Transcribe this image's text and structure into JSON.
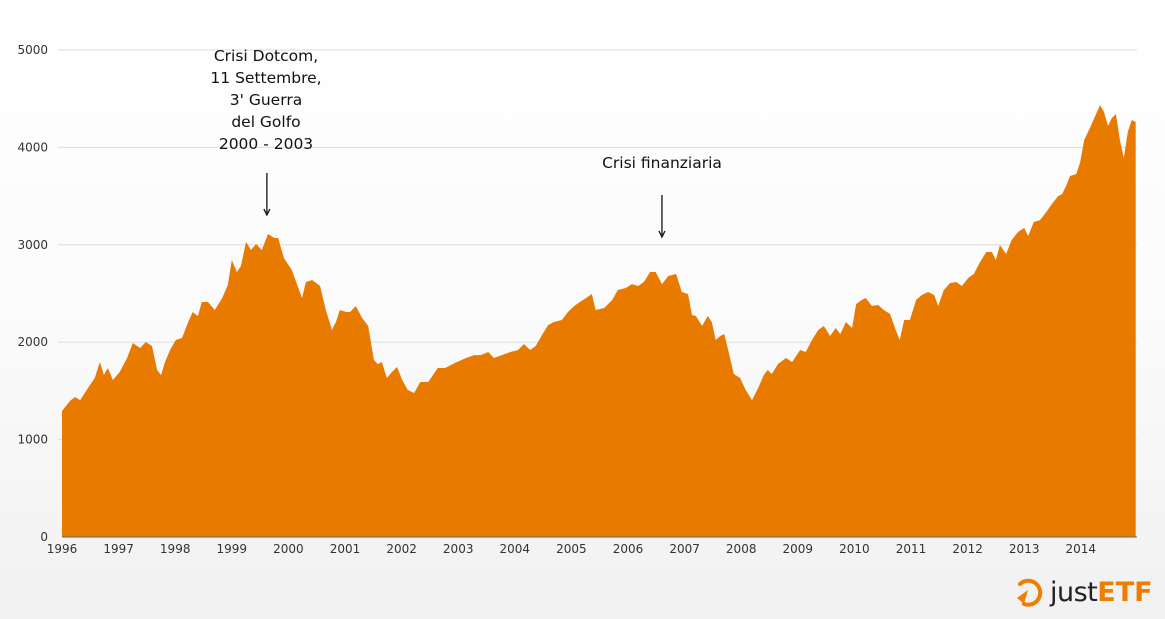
{
  "chart_data": {
    "type": "area",
    "title": "",
    "xlabel": "",
    "ylabel": "",
    "xlim": [
      1996,
      2014.97
    ],
    "ylim": [
      0,
      5000
    ],
    "grid": true,
    "fill_color": "#e87a00",
    "yticks": [
      "0",
      "1000",
      "2000",
      "3000",
      "4000",
      "5000"
    ],
    "xticks": [
      "1996",
      "1997",
      "1998",
      "1999",
      "2000",
      "2001",
      "2002",
      "2003",
      "2004",
      "2005",
      "2006",
      "2007",
      "2008",
      "2009",
      "2010",
      "2011",
      "2012",
      "2013",
      "2014"
    ],
    "series": [
      {
        "points": [
          [
            1996.0,
            1294
          ],
          [
            1996.14,
            1396
          ],
          [
            1996.23,
            1437
          ],
          [
            1996.32,
            1406
          ],
          [
            1996.46,
            1530
          ],
          [
            1996.58,
            1632
          ],
          [
            1996.67,
            1797
          ],
          [
            1996.74,
            1663
          ],
          [
            1996.81,
            1735
          ],
          [
            1996.9,
            1612
          ],
          [
            1997.02,
            1694
          ],
          [
            1997.15,
            1838
          ],
          [
            1997.25,
            1992
          ],
          [
            1997.38,
            1940
          ],
          [
            1997.48,
            2002
          ],
          [
            1997.59,
            1961
          ],
          [
            1997.68,
            1715
          ],
          [
            1997.75,
            1663
          ],
          [
            1997.82,
            1797
          ],
          [
            1997.91,
            1920
          ],
          [
            1998.01,
            2023
          ],
          [
            1998.12,
            2043
          ],
          [
            1998.23,
            2207
          ],
          [
            1998.31,
            2310
          ],
          [
            1998.4,
            2269
          ],
          [
            1998.47,
            2413
          ],
          [
            1998.58,
            2413
          ],
          [
            1998.7,
            2331
          ],
          [
            1998.83,
            2454
          ],
          [
            1998.93,
            2587
          ],
          [
            1999.0,
            2844
          ],
          [
            1999.09,
            2721
          ],
          [
            1999.16,
            2782
          ],
          [
            1999.25,
            3029
          ],
          [
            1999.34,
            2947
          ],
          [
            1999.43,
            3008
          ],
          [
            1999.53,
            2947
          ],
          [
            1999.64,
            3111
          ],
          [
            1999.75,
            3070
          ],
          [
            1999.82,
            3070
          ],
          [
            1999.92,
            2864
          ],
          [
            2000.06,
            2741
          ],
          [
            2000.24,
            2454
          ],
          [
            2000.31,
            2618
          ],
          [
            2000.42,
            2639
          ],
          [
            2000.56,
            2577
          ],
          [
            2000.66,
            2331
          ],
          [
            2000.77,
            2125
          ],
          [
            2000.84,
            2207
          ],
          [
            2000.91,
            2331
          ],
          [
            2001.02,
            2310
          ],
          [
            2001.09,
            2310
          ],
          [
            2001.19,
            2372
          ],
          [
            2001.3,
            2249
          ],
          [
            2001.41,
            2166
          ],
          [
            2001.51,
            1817
          ],
          [
            2001.58,
            1776
          ],
          [
            2001.65,
            1797
          ],
          [
            2001.74,
            1632
          ],
          [
            2001.83,
            1694
          ],
          [
            2001.92,
            1745
          ],
          [
            2002.01,
            1612
          ],
          [
            2002.11,
            1509
          ],
          [
            2002.22,
            1478
          ],
          [
            2002.33,
            1591
          ],
          [
            2002.47,
            1591
          ],
          [
            2002.64,
            1735
          ],
          [
            2002.77,
            1735
          ],
          [
            2002.94,
            1786
          ],
          [
            2003.14,
            1838
          ],
          [
            2003.28,
            1868
          ],
          [
            2003.4,
            1868
          ],
          [
            2003.53,
            1899
          ],
          [
            2003.63,
            1838
          ],
          [
            2003.77,
            1868
          ],
          [
            2003.92,
            1899
          ],
          [
            2004.06,
            1920
          ],
          [
            2004.16,
            1982
          ],
          [
            2004.27,
            1920
          ],
          [
            2004.37,
            1961
          ],
          [
            2004.48,
            2074
          ],
          [
            2004.59,
            2177
          ],
          [
            2004.69,
            2207
          ],
          [
            2004.83,
            2228
          ],
          [
            2004.94,
            2310
          ],
          [
            2005.05,
            2372
          ],
          [
            2005.15,
            2413
          ],
          [
            2005.26,
            2454
          ],
          [
            2005.36,
            2495
          ],
          [
            2005.43,
            2331
          ],
          [
            2005.58,
            2351
          ],
          [
            2005.72,
            2433
          ],
          [
            2005.82,
            2536
          ],
          [
            2005.96,
            2556
          ],
          [
            2006.07,
            2597
          ],
          [
            2006.18,
            2577
          ],
          [
            2006.28,
            2618
          ],
          [
            2006.39,
            2721
          ],
          [
            2006.49,
            2721
          ],
          [
            2006.6,
            2597
          ],
          [
            2006.71,
            2680
          ],
          [
            2006.85,
            2700
          ],
          [
            2006.95,
            2515
          ],
          [
            2007.06,
            2495
          ],
          [
            2007.13,
            2279
          ],
          [
            2007.2,
            2269
          ],
          [
            2007.31,
            2166
          ],
          [
            2007.41,
            2269
          ],
          [
            2007.48,
            2207
          ],
          [
            2007.55,
            2023
          ],
          [
            2007.63,
            2064
          ],
          [
            2007.7,
            2084
          ],
          [
            2007.77,
            1920
          ],
          [
            2007.87,
            1673
          ],
          [
            2007.98,
            1632
          ],
          [
            2008.08,
            1509
          ],
          [
            2008.19,
            1406
          ],
          [
            2008.3,
            1530
          ],
          [
            2008.4,
            1663
          ],
          [
            2008.47,
            1715
          ],
          [
            2008.54,
            1673
          ],
          [
            2008.65,
            1776
          ],
          [
            2008.79,
            1838
          ],
          [
            2008.9,
            1797
          ],
          [
            2009.04,
            1920
          ],
          [
            2009.14,
            1899
          ],
          [
            2009.25,
            2023
          ],
          [
            2009.36,
            2125
          ],
          [
            2009.46,
            2166
          ],
          [
            2009.57,
            2064
          ],
          [
            2009.67,
            2146
          ],
          [
            2009.75,
            2084
          ],
          [
            2009.85,
            2207
          ],
          [
            2009.96,
            2146
          ],
          [
            2010.03,
            2392
          ],
          [
            2010.13,
            2433
          ],
          [
            2010.2,
            2454
          ],
          [
            2010.31,
            2372
          ],
          [
            2010.42,
            2382
          ],
          [
            2010.52,
            2331
          ],
          [
            2010.63,
            2290
          ],
          [
            2010.73,
            2125
          ],
          [
            2010.8,
            2023
          ],
          [
            2010.88,
            2228
          ],
          [
            2010.98,
            2228
          ],
          [
            2011.09,
            2433
          ],
          [
            2011.19,
            2485
          ],
          [
            2011.3,
            2515
          ],
          [
            2011.41,
            2485
          ],
          [
            2011.48,
            2372
          ],
          [
            2011.58,
            2536
          ],
          [
            2011.69,
            2608
          ],
          [
            2011.8,
            2618
          ],
          [
            2011.9,
            2577
          ],
          [
            2012.01,
            2659
          ],
          [
            2012.11,
            2700
          ],
          [
            2012.22,
            2823
          ],
          [
            2012.33,
            2926
          ],
          [
            2012.43,
            2926
          ],
          [
            2012.5,
            2844
          ],
          [
            2012.57,
            2998
          ],
          [
            2012.68,
            2906
          ],
          [
            2012.78,
            3049
          ],
          [
            2012.89,
            3131
          ],
          [
            2013.0,
            3172
          ],
          [
            2013.07,
            3090
          ],
          [
            2013.17,
            3234
          ],
          [
            2013.28,
            3254
          ],
          [
            2013.39,
            3337
          ],
          [
            2013.49,
            3419
          ],
          [
            2013.6,
            3501
          ],
          [
            2013.67,
            3521
          ],
          [
            2013.74,
            3604
          ],
          [
            2013.81,
            3706
          ],
          [
            2013.92,
            3727
          ],
          [
            2013.99,
            3850
          ],
          [
            2014.06,
            4076
          ],
          [
            2014.16,
            4199
          ],
          [
            2014.27,
            4343
          ],
          [
            2014.34,
            4435
          ],
          [
            2014.41,
            4363
          ],
          [
            2014.48,
            4220
          ],
          [
            2014.55,
            4302
          ],
          [
            2014.62,
            4343
          ],
          [
            2014.69,
            4076
          ],
          [
            2014.76,
            3891
          ],
          [
            2014.83,
            4158
          ],
          [
            2014.9,
            4281
          ],
          [
            2014.97,
            4261
          ]
        ]
      }
    ],
    "annotations": [
      {
        "lines": [
          "Crisi Dotcom,",
          "11 Settembre,",
          "3' Guerra",
          "del Golfo",
          "2000 - 2003"
        ],
        "arrow_x": 1999.62
      },
      {
        "lines": [
          "Crisi finanziaria"
        ],
        "arrow_x": 2006.6
      }
    ]
  },
  "logo": {
    "part1": "just",
    "part2": "ETF",
    "accent": "#ef7d00"
  }
}
